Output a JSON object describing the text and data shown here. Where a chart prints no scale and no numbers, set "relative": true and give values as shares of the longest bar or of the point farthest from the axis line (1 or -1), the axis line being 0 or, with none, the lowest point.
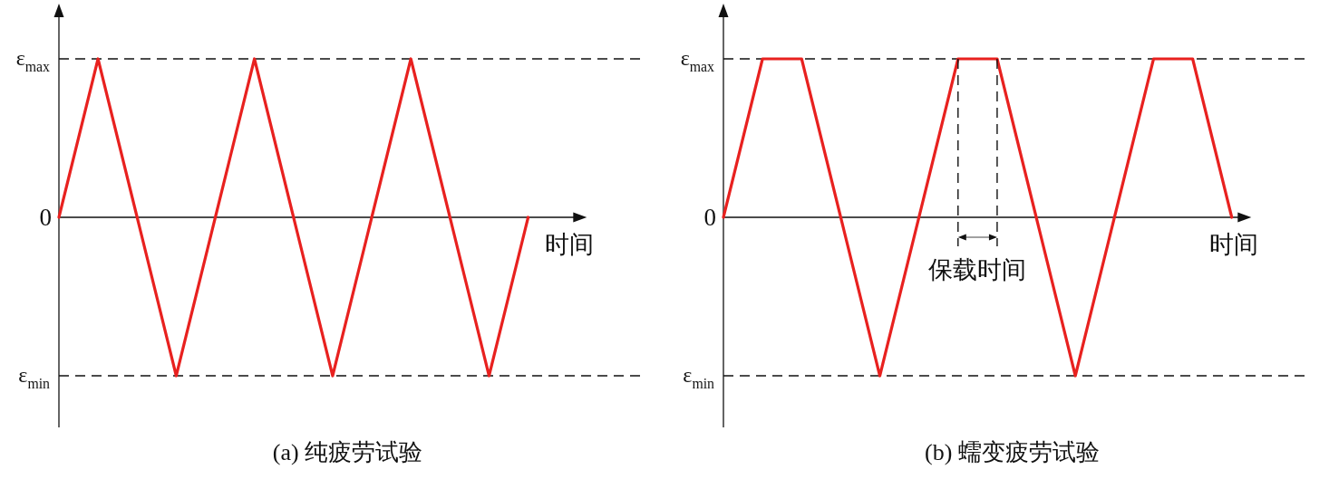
{
  "chart_data": [
    {
      "type": "line",
      "title": "(a) 纯疲劳试验",
      "xlabel": "时间",
      "relative": true,
      "line_style": "solid",
      "marker": "none",
      "categories": [
        null,
        null,
        null,
        null,
        null,
        null,
        null,
        null,
        null,
        null,
        null,
        null,
        null
      ],
      "series": [
        {
          "color": "#e8211f",
          "values": [
            0,
            1,
            0,
            -1,
            0,
            1,
            0,
            -1,
            0,
            1,
            0,
            -1,
            0
          ]
        }
      ],
      "ref_lines": [
        {
          "axis": "y",
          "value": 1,
          "label": "ε$_{max}$",
          "line_style": "dashed"
        },
        {
          "axis": "y",
          "value": -1,
          "label": "ε$_{min}$",
          "line_style": "dashed"
        }
      ],
      "annotations": [
        "0"
      ]
    },
    {
      "type": "line",
      "title": "(b) 蠕变疲劳试验",
      "xlabel": "时间",
      "relative": true,
      "line_style": "solid",
      "marker": "none",
      "categories": [
        null,
        null,
        null,
        null,
        null,
        null,
        null,
        null,
        null,
        null,
        null,
        null,
        null,
        null
      ],
      "series": [
        {
          "color": "#e8211f",
          "values": [
            0,
            1,
            1,
            0,
            -1,
            0,
            1,
            1,
            0,
            -1,
            0,
            1,
            1,
            0
          ]
        }
      ],
      "ref_lines": [
        {
          "axis": "y",
          "value": 1,
          "label": "ε$_{max}$",
          "line_style": "dashed"
        },
        {
          "axis": "y",
          "value": -1,
          "label": "ε$_{min}$",
          "line_style": "dashed"
        }
      ],
      "annotations": [
        "0",
        "保载时间"
      ]
    }
  ]
}
